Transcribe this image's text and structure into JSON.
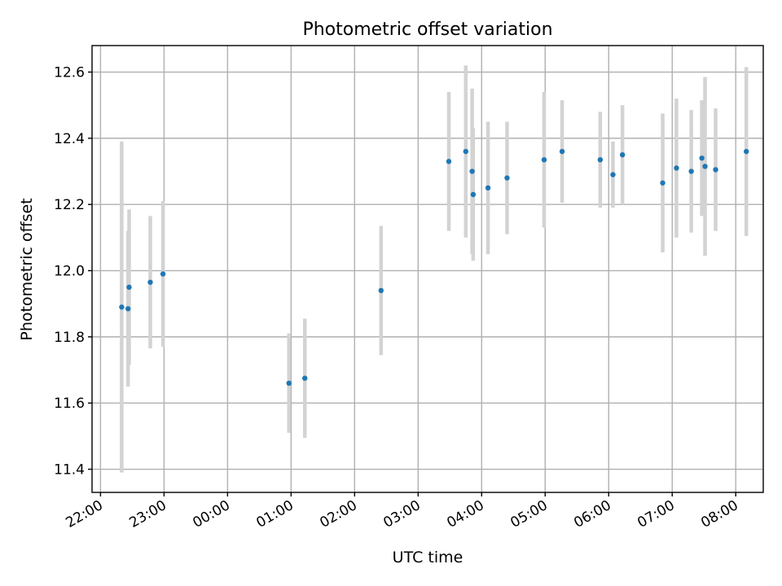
{
  "chart_data": {
    "type": "scatter",
    "title": "Photometric offset variation",
    "xlabel": "UTC time",
    "ylabel": "Photometric offset",
    "grid": true,
    "xlim": [
      "21:52",
      "08:26"
    ],
    "ylim": [
      11.33,
      12.68
    ],
    "x_ticks": [
      "22:00",
      "23:00",
      "00:00",
      "01:00",
      "02:00",
      "03:00",
      "04:00",
      "05:00",
      "06:00",
      "07:00",
      "08:00"
    ],
    "y_ticks": [
      11.4,
      11.6,
      11.8,
      12.0,
      12.2,
      12.4,
      12.6
    ],
    "y_tick_labels": [
      "11.4",
      "11.6",
      "11.8",
      "12.0",
      "12.2",
      "12.4",
      "12.6"
    ],
    "colors": {
      "point": "#1f77b4",
      "errorbar": "#d3d3d3"
    },
    "series": [
      {
        "x": [
          "22:20",
          "22:26",
          "22:27",
          "22:47",
          "22:59",
          "00:58",
          "01:13",
          "02:25",
          "03:29",
          "03:45",
          "03:51",
          "03:52",
          "04:06",
          "04:24",
          "04:59",
          "05:16",
          "05:52",
          "06:04",
          "06:13",
          "06:51",
          "07:04",
          "07:18",
          "07:28",
          "07:31",
          "07:41",
          "08:10"
        ],
        "y": [
          11.89,
          11.885,
          11.95,
          11.965,
          11.99,
          11.66,
          11.675,
          11.94,
          12.33,
          12.36,
          12.3,
          12.23,
          12.25,
          12.28,
          12.335,
          12.36,
          12.335,
          12.29,
          12.35,
          12.265,
          12.31,
          12.3,
          12.34,
          12.315,
          12.305,
          12.36
        ],
        "yerr": [
          0.5,
          0.235,
          0.235,
          0.2,
          0.22,
          0.15,
          0.18,
          0.195,
          0.21,
          0.26,
          0.25,
          0.2,
          0.2,
          0.17,
          0.205,
          0.155,
          0.145,
          0.1,
          0.15,
          0.21,
          0.21,
          0.185,
          0.175,
          0.27,
          0.185,
          0.255
        ]
      }
    ]
  }
}
